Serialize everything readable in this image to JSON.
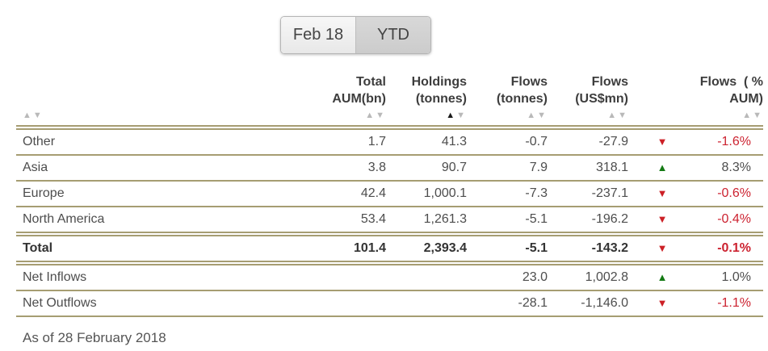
{
  "tabs": [
    {
      "label": "Feb 18",
      "state": "active"
    },
    {
      "label": "YTD",
      "state": "inactive"
    }
  ],
  "icons": {
    "sort_up": "▲",
    "sort_down": "▼"
  },
  "table": {
    "columns": [
      {
        "key": "region",
        "label_line1": "",
        "label_line2": "",
        "sort": "none"
      },
      {
        "key": "total_aum",
        "label_line1": "Total",
        "label_line2": "AUM(bn)",
        "sort": "none"
      },
      {
        "key": "holdings",
        "label_line1": "Holdings",
        "label_line2": "(tonnes)",
        "sort": "asc"
      },
      {
        "key": "flows_tonnes",
        "label_line1": "Flows",
        "label_line2": "(tonnes)",
        "sort": "none"
      },
      {
        "key": "flows_usd",
        "label_line1": "Flows",
        "label_line2": "(US$mn)",
        "sort": "none"
      },
      {
        "key": "flows_pct",
        "label_line1": "Flows  ( %",
        "label_line2": "AUM)",
        "sort": "none"
      }
    ],
    "rows": [
      {
        "region": "Other",
        "aum": "1.7",
        "holdings": "41.3",
        "flows_tonnes": "-0.7",
        "flows_usd": "-27.9",
        "trend": "down",
        "trend_glyph": "▼",
        "flows_pct": "-1.6%",
        "pct_sign": "neg"
      },
      {
        "region": "Asia",
        "aum": "3.8",
        "holdings": "90.7",
        "flows_tonnes": "7.9",
        "flows_usd": "318.1",
        "trend": "up",
        "trend_glyph": "▲",
        "flows_pct": "8.3%",
        "pct_sign": "pos"
      },
      {
        "region": "Europe",
        "aum": "42.4",
        "holdings": "1,000.1",
        "flows_tonnes": "-7.3",
        "flows_usd": "-237.1",
        "trend": "down",
        "trend_glyph": "▼",
        "flows_pct": "-0.6%",
        "pct_sign": "neg"
      },
      {
        "region": "North America",
        "aum": "53.4",
        "holdings": "1,261.3",
        "flows_tonnes": "-5.1",
        "flows_usd": "-196.2",
        "trend": "down",
        "trend_glyph": "▼",
        "flows_pct": "-0.4%",
        "pct_sign": "neg"
      },
      {
        "region": "Total",
        "aum": "101.4",
        "holdings": "2,393.4",
        "flows_tonnes": "-5.1",
        "flows_usd": "-143.2",
        "trend": "down",
        "trend_glyph": "▼",
        "flows_pct": "-0.1%",
        "pct_sign": "neg"
      },
      {
        "region": "Net Inflows",
        "aum": "",
        "holdings": "",
        "flows_tonnes": "23.0",
        "flows_usd": "1,002.8",
        "trend": "up",
        "trend_glyph": "▲",
        "flows_pct": "1.0%",
        "pct_sign": "pos"
      },
      {
        "region": "Net Outflows",
        "aum": "",
        "holdings": "",
        "flows_tonnes": "-28.1",
        "flows_usd": "-1,146.0",
        "trend": "down",
        "trend_glyph": "▼",
        "flows_pct": "-1.1%",
        "pct_sign": "neg"
      }
    ]
  },
  "footer": {
    "as_of": "As of 28 February 2018"
  },
  "colors": {
    "rule": "#a69d72",
    "negative_red": "#cc2230",
    "positive_green": "#147a14"
  }
}
